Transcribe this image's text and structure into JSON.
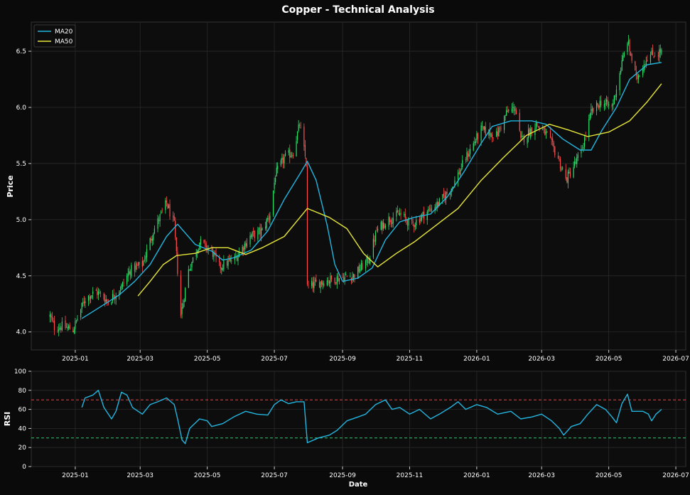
{
  "chart_data": [
    {
      "type": "candlestick",
      "title": "Copper - Technical Analysis",
      "xlabel": "",
      "ylabel": "Price",
      "ylim": [
        3.84,
        6.76
      ],
      "xlim": [
        "2024-11-22",
        "2026-07-10"
      ],
      "yticks": [
        "4.0",
        "4.5",
        "5.0",
        "5.5",
        "6.0",
        "6.5"
      ],
      "xticks": [
        "2025-01",
        "2025-03",
        "2025-05",
        "2025-07",
        "2025-09",
        "2025-11",
        "2026-01",
        "2026-03",
        "2026-05",
        "2026-07"
      ],
      "grid": true,
      "legend": "top-left",
      "up_color": "#2ee06b",
      "down_color": "#ff4d4d",
      "close_anchors": [
        [
          "2024-12-09",
          4.14
        ],
        [
          "2024-12-13",
          4.04
        ],
        [
          "2024-12-20",
          4.05
        ],
        [
          "2024-12-30",
          4.02
        ],
        [
          "2025-01-10",
          4.3
        ],
        [
          "2025-01-20",
          4.36
        ],
        [
          "2025-01-31",
          4.27
        ],
        [
          "2025-02-12",
          4.4
        ],
        [
          "2025-02-20",
          4.55
        ],
        [
          "2025-03-03",
          4.6
        ],
        [
          "2025-03-13",
          4.9
        ],
        [
          "2025-03-25",
          5.15
        ],
        [
          "2025-04-01",
          4.95
        ],
        [
          "2025-04-07",
          4.15
        ],
        [
          "2025-04-14",
          4.55
        ],
        [
          "2025-04-24",
          4.8
        ],
        [
          "2025-05-05",
          4.72
        ],
        [
          "2025-05-12",
          4.58
        ],
        [
          "2025-05-26",
          4.65
        ],
        [
          "2025-06-09",
          4.85
        ],
        [
          "2025-06-20",
          4.9
        ],
        [
          "2025-06-27",
          5.05
        ],
        [
          "2025-07-02",
          5.4
        ],
        [
          "2025-07-10",
          5.55
        ],
        [
          "2025-07-18",
          5.6
        ],
        [
          "2025-07-24",
          5.85
        ],
        [
          "2025-07-30",
          5.5
        ],
        [
          "2025-07-31",
          4.4
        ],
        [
          "2025-08-14",
          4.45
        ],
        [
          "2025-08-28",
          4.48
        ],
        [
          "2025-09-11",
          4.5
        ],
        [
          "2025-09-25",
          4.65
        ],
        [
          "2025-10-02",
          4.9
        ],
        [
          "2025-10-12",
          5.0
        ],
        [
          "2025-10-23",
          5.05
        ],
        [
          "2025-11-03",
          4.95
        ],
        [
          "2025-11-14",
          5.05
        ],
        [
          "2025-11-28",
          5.15
        ],
        [
          "2025-12-10",
          5.3
        ],
        [
          "2025-12-22",
          5.55
        ],
        [
          "2026-01-05",
          5.8
        ],
        [
          "2026-01-19",
          5.75
        ],
        [
          "2026-01-28",
          5.95
        ],
        [
          "2026-02-05",
          6.0
        ],
        [
          "2026-02-10",
          5.7
        ],
        [
          "2026-02-24",
          5.85
        ],
        [
          "2026-03-06",
          5.75
        ],
        [
          "2026-03-16",
          5.55
        ],
        [
          "2026-03-23",
          5.35
        ],
        [
          "2026-04-06",
          5.6
        ],
        [
          "2026-04-15",
          5.95
        ],
        [
          "2026-04-24",
          6.05
        ],
        [
          "2026-05-04",
          6.0
        ],
        [
          "2026-05-12",
          6.35
        ],
        [
          "2026-05-18",
          6.6
        ],
        [
          "2026-05-26",
          6.25
        ],
        [
          "2026-06-05",
          6.45
        ],
        [
          "2026-06-18",
          6.5
        ]
      ],
      "series": [
        {
          "name": "MA20",
          "color": "#22b6e0",
          "points": [
            [
              "2025-01-07",
              4.12
            ],
            [
              "2025-01-20",
              4.2
            ],
            [
              "2025-02-10",
              4.33
            ],
            [
              "2025-02-24",
              4.45
            ],
            [
              "2025-03-10",
              4.6
            ],
            [
              "2025-03-25",
              4.85
            ],
            [
              "2025-04-04",
              4.96
            ],
            [
              "2025-04-20",
              4.78
            ],
            [
              "2025-05-05",
              4.72
            ],
            [
              "2025-05-15",
              4.64
            ],
            [
              "2025-05-25",
              4.66
            ],
            [
              "2025-06-10",
              4.73
            ],
            [
              "2025-06-25",
              4.9
            ],
            [
              "2025-07-10",
              5.18
            ],
            [
              "2025-07-25",
              5.42
            ],
            [
              "2025-07-31",
              5.52
            ],
            [
              "2025-08-08",
              5.35
            ],
            [
              "2025-08-18",
              4.95
            ],
            [
              "2025-08-25",
              4.6
            ],
            [
              "2025-09-01",
              4.45
            ],
            [
              "2025-09-15",
              4.48
            ],
            [
              "2025-09-28",
              4.57
            ],
            [
              "2025-10-10",
              4.82
            ],
            [
              "2025-10-23",
              4.98
            ],
            [
              "2025-11-05",
              5.02
            ],
            [
              "2025-11-20",
              5.05
            ],
            [
              "2025-12-05",
              5.2
            ],
            [
              "2025-12-20",
              5.42
            ],
            [
              "2026-01-05",
              5.68
            ],
            [
              "2026-01-15",
              5.83
            ],
            [
              "2026-02-01",
              5.88
            ],
            [
              "2026-02-20",
              5.88
            ],
            [
              "2026-03-05",
              5.85
            ],
            [
              "2026-03-20",
              5.72
            ],
            [
              "2026-04-05",
              5.62
            ],
            [
              "2026-04-15",
              5.62
            ],
            [
              "2026-04-25",
              5.8
            ],
            [
              "2026-05-08",
              6.0
            ],
            [
              "2026-05-20",
              6.25
            ],
            [
              "2026-06-05",
              6.38
            ],
            [
              "2026-06-18",
              6.4
            ]
          ]
        },
        {
          "name": "MA50",
          "color": "#e6e63a",
          "points": [
            [
              "2025-02-27",
              4.32
            ],
            [
              "2025-03-10",
              4.45
            ],
            [
              "2025-03-22",
              4.6
            ],
            [
              "2025-04-03",
              4.68
            ],
            [
              "2025-04-20",
              4.7
            ],
            [
              "2025-05-05",
              4.75
            ],
            [
              "2025-05-20",
              4.75
            ],
            [
              "2025-06-05",
              4.69
            ],
            [
              "2025-06-20",
              4.75
            ],
            [
              "2025-07-10",
              4.85
            ],
            [
              "2025-07-31",
              5.1
            ],
            [
              "2025-08-20",
              5.02
            ],
            [
              "2025-09-05",
              4.92
            ],
            [
              "2025-09-20",
              4.7
            ],
            [
              "2025-10-03",
              4.58
            ],
            [
              "2025-10-20",
              4.7
            ],
            [
              "2025-11-05",
              4.8
            ],
            [
              "2025-11-25",
              4.95
            ],
            [
              "2025-12-15",
              5.1
            ],
            [
              "2026-01-05",
              5.35
            ],
            [
              "2026-01-25",
              5.55
            ],
            [
              "2026-02-15",
              5.75
            ],
            [
              "2026-03-08",
              5.85
            ],
            [
              "2026-03-25",
              5.8
            ],
            [
              "2026-04-12",
              5.74
            ],
            [
              "2026-05-01",
              5.78
            ],
            [
              "2026-05-20",
              5.88
            ],
            [
              "2026-06-05",
              6.05
            ],
            [
              "2026-06-18",
              6.21
            ]
          ]
        }
      ]
    },
    {
      "type": "line",
      "title": "",
      "xlabel": "Date",
      "ylabel": "RSI",
      "ylim": [
        0,
        100
      ],
      "xlim": [
        "2024-11-22",
        "2026-07-10"
      ],
      "yticks": [
        "0",
        "20",
        "40",
        "60",
        "80",
        "100"
      ],
      "xticks": [
        "2025-01",
        "2025-03",
        "2025-05",
        "2025-07",
        "2025-09",
        "2025-11",
        "2026-01",
        "2026-03",
        "2026-05",
        "2026-07"
      ],
      "grid": true,
      "reference_lines": [
        {
          "value": 70,
          "color": "#e04848"
        },
        {
          "value": 30,
          "color": "#2ecc71"
        }
      ],
      "series": [
        {
          "name": "",
          "color": "#22b6e0",
          "points": [
            [
              "2025-01-07",
              62
            ],
            [
              "2025-01-10",
              72
            ],
            [
              "2025-01-17",
              75
            ],
            [
              "2025-01-22",
              80
            ],
            [
              "2025-01-27",
              62
            ],
            [
              "2025-02-03",
              50
            ],
            [
              "2025-02-07",
              58
            ],
            [
              "2025-02-12",
              78
            ],
            [
              "2025-02-17",
              75
            ],
            [
              "2025-02-22",
              62
            ],
            [
              "2025-03-03",
              55
            ],
            [
              "2025-03-10",
              65
            ],
            [
              "2025-03-17",
              68
            ],
            [
              "2025-03-25",
              72
            ],
            [
              "2025-04-01",
              65
            ],
            [
              "2025-04-04",
              50
            ],
            [
              "2025-04-08",
              28
            ],
            [
              "2025-04-11",
              24
            ],
            [
              "2025-04-15",
              40
            ],
            [
              "2025-04-24",
              50
            ],
            [
              "2025-05-01",
              48
            ],
            [
              "2025-05-05",
              42
            ],
            [
              "2025-05-15",
              45
            ],
            [
              "2025-05-25",
              52
            ],
            [
              "2025-06-05",
              58
            ],
            [
              "2025-06-15",
              55
            ],
            [
              "2025-06-25",
              54
            ],
            [
              "2025-07-01",
              65
            ],
            [
              "2025-07-07",
              70
            ],
            [
              "2025-07-14",
              66
            ],
            [
              "2025-07-21",
              68
            ],
            [
              "2025-07-28",
              68
            ],
            [
              "2025-07-31",
              25
            ],
            [
              "2025-08-10",
              30
            ],
            [
              "2025-08-20",
              33
            ],
            [
              "2025-08-27",
              38
            ],
            [
              "2025-09-05",
              48
            ],
            [
              "2025-09-15",
              52
            ],
            [
              "2025-09-22",
              55
            ],
            [
              "2025-10-01",
              65
            ],
            [
              "2025-10-10",
              70
            ],
            [
              "2025-10-16",
              60
            ],
            [
              "2025-10-23",
              62
            ],
            [
              "2025-11-01",
              55
            ],
            [
              "2025-11-10",
              60
            ],
            [
              "2025-11-20",
              50
            ],
            [
              "2025-11-28",
              55
            ],
            [
              "2025-12-08",
              62
            ],
            [
              "2025-12-15",
              68
            ],
            [
              "2025-12-22",
              60
            ],
            [
              "2026-01-01",
              65
            ],
            [
              "2026-01-10",
              62
            ],
            [
              "2026-01-20",
              55
            ],
            [
              "2026-02-01",
              58
            ],
            [
              "2026-02-10",
              50
            ],
            [
              "2026-02-20",
              52
            ],
            [
              "2026-03-01",
              55
            ],
            [
              "2026-03-10",
              48
            ],
            [
              "2026-03-17",
              40
            ],
            [
              "2026-03-21",
              33
            ],
            [
              "2026-03-28",
              42
            ],
            [
              "2026-04-05",
              45
            ],
            [
              "2026-04-12",
              55
            ],
            [
              "2026-04-20",
              65
            ],
            [
              "2026-04-28",
              60
            ],
            [
              "2026-05-04",
              52
            ],
            [
              "2026-05-08",
              46
            ],
            [
              "2026-05-13",
              66
            ],
            [
              "2026-05-18",
              76
            ],
            [
              "2026-05-22",
              58
            ],
            [
              "2026-06-01",
              58
            ],
            [
              "2026-06-06",
              55
            ],
            [
              "2026-06-09",
              48
            ],
            [
              "2026-06-13",
              55
            ],
            [
              "2026-06-18",
              60
            ]
          ]
        }
      ]
    }
  ]
}
